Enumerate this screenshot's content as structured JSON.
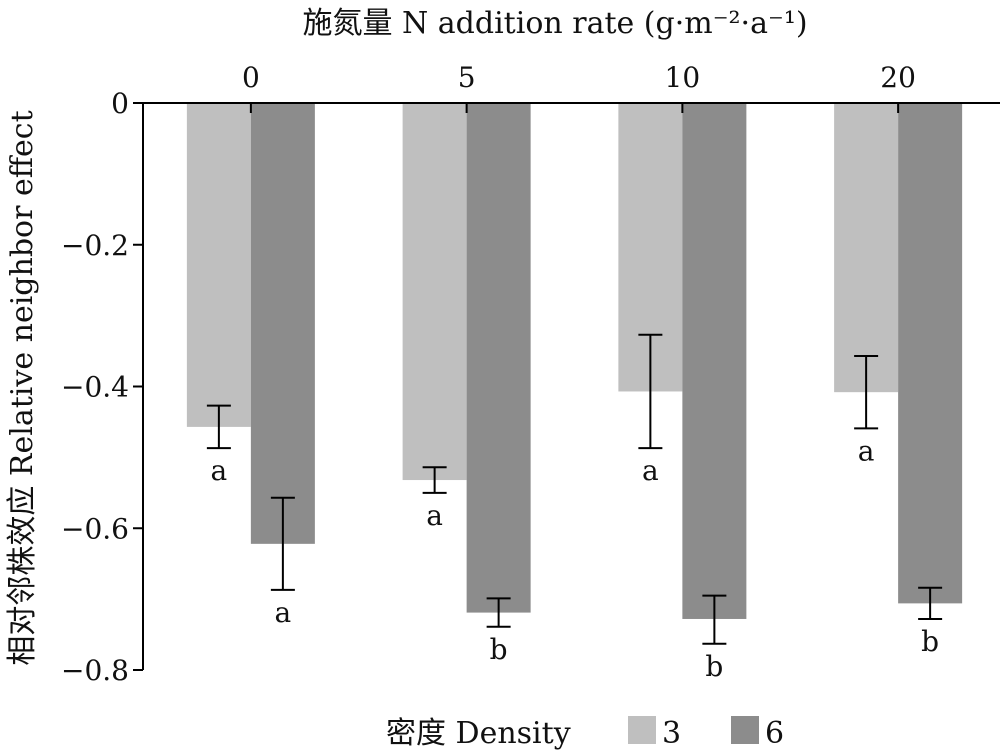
{
  "chart_data": {
    "type": "bar",
    "title": "施氮量 N addition rate (g·m⁻²·a⁻¹)",
    "xlabel": "",
    "ylabel": "相对邻株效应 Relative neighbor effect",
    "categories": [
      "0",
      "5",
      "10",
      "20"
    ],
    "ylim": [
      -0.8,
      0
    ],
    "yticks": [
      0,
      -0.2,
      -0.4,
      -0.6,
      -0.8
    ],
    "ytick_labels": [
      "0",
      "−0.2",
      "−0.4",
      "−0.6",
      "−0.8"
    ],
    "x_axis_position": "top",
    "grid": false,
    "legend": {
      "title": "密度 Density",
      "position": "bottom-center"
    },
    "series": [
      {
        "name": "3",
        "color": "#bfbfbf",
        "values": [
          -0.457,
          -0.532,
          -0.407,
          -0.408
        ],
        "err_low": [
          -0.487,
          -0.55,
          -0.487,
          -0.459
        ],
        "err_high": [
          -0.427,
          -0.514,
          -0.327,
          -0.357
        ],
        "letters": [
          "a",
          "a",
          "a",
          "a"
        ]
      },
      {
        "name": "6",
        "color": "#8c8c8c",
        "values": [
          -0.622,
          -0.719,
          -0.728,
          -0.706
        ],
        "err_low": [
          -0.687,
          -0.739,
          -0.763,
          -0.728
        ],
        "err_high": [
          -0.557,
          -0.699,
          -0.695,
          -0.684
        ],
        "letters": [
          "a",
          "b",
          "b",
          "b"
        ]
      }
    ]
  }
}
